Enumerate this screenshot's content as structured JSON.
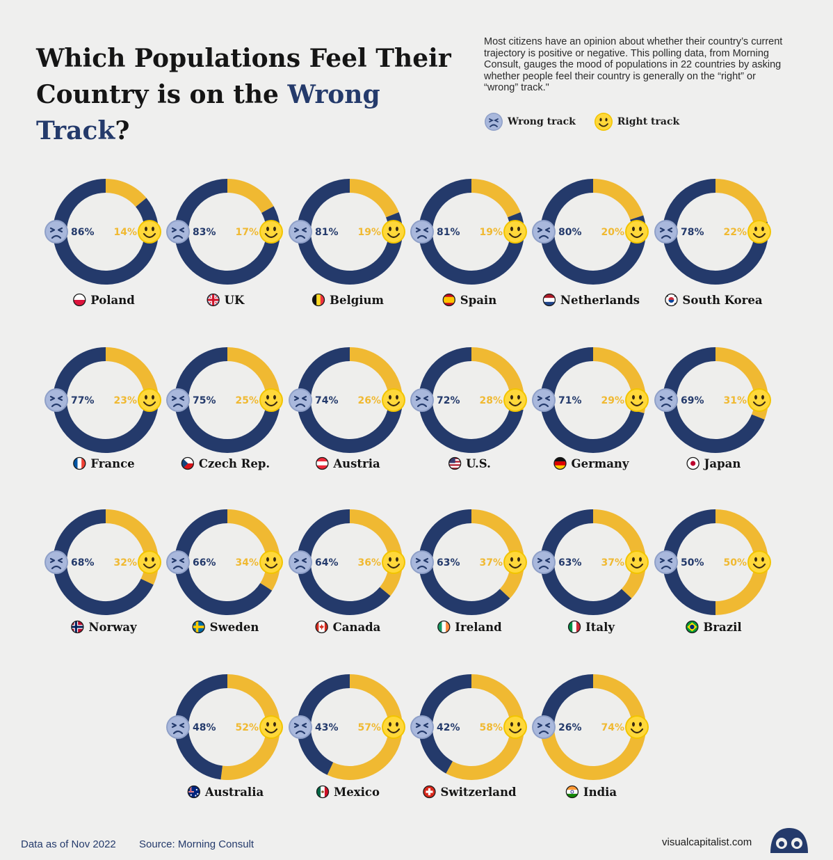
{
  "header": {
    "title_part1": "Which Populations Feel Their Country is on the ",
    "title_highlight": "Wrong Track",
    "title_end": "?",
    "intro": "Most citizens have an opinion about whether their country’s current trajectory is positive or negative. This polling data, from Morning Consult, gauges the mood of populations in 22 countries by asking whether people feel their country is generally on the “right” or “wrong” track.\""
  },
  "legend": {
    "wrong_label": "Wrong track",
    "right_label": "Right track"
  },
  "colors": {
    "wrong": "#243a6b",
    "right": "#f0b932",
    "inner": "#eeeeec",
    "background": "#efefee"
  },
  "icons": {
    "wrong": "sad-face-icon",
    "right": "smiley-face-icon"
  },
  "chart_data": {
    "type": "donut",
    "title": "Which Populations Feel Their Country is on the Wrong Track?",
    "series": [
      {
        "name": "Wrong track",
        "values": [
          86,
          83,
          81,
          81,
          80,
          78,
          77,
          75,
          74,
          72,
          71,
          69,
          68,
          66,
          64,
          63,
          63,
          50,
          48,
          43,
          42,
          26
        ]
      },
      {
        "name": "Right track",
        "values": [
          14,
          17,
          19,
          19,
          20,
          22,
          23,
          25,
          26,
          28,
          29,
          31,
          32,
          34,
          36,
          37,
          37,
          50,
          52,
          57,
          58,
          74
        ]
      }
    ],
    "units": "%",
    "countries": [
      {
        "name": "Poland",
        "wrong": 86,
        "right": 14,
        "flag": "poland-flag-icon"
      },
      {
        "name": "UK",
        "wrong": 83,
        "right": 17,
        "flag": "uk-flag-icon"
      },
      {
        "name": "Belgium",
        "wrong": 81,
        "right": 19,
        "flag": "belgium-flag-icon"
      },
      {
        "name": "Spain",
        "wrong": 81,
        "right": 19,
        "flag": "spain-flag-icon"
      },
      {
        "name": "Netherlands",
        "wrong": 80,
        "right": 20,
        "flag": "netherlands-flag-icon"
      },
      {
        "name": "South Korea",
        "wrong": 78,
        "right": 22,
        "flag": "south-korea-flag-icon"
      },
      {
        "name": "France",
        "wrong": 77,
        "right": 23,
        "flag": "france-flag-icon"
      },
      {
        "name": "Czech Rep.",
        "wrong": 75,
        "right": 25,
        "flag": "czech-flag-icon"
      },
      {
        "name": "Austria",
        "wrong": 74,
        "right": 26,
        "flag": "austria-flag-icon"
      },
      {
        "name": "U.S.",
        "wrong": 72,
        "right": 28,
        "flag": "us-flag-icon"
      },
      {
        "name": "Germany",
        "wrong": 71,
        "right": 29,
        "flag": "germany-flag-icon"
      },
      {
        "name": "Japan",
        "wrong": 69,
        "right": 31,
        "flag": "japan-flag-icon"
      },
      {
        "name": "Norway",
        "wrong": 68,
        "right": 32,
        "flag": "norway-flag-icon"
      },
      {
        "name": "Sweden",
        "wrong": 66,
        "right": 34,
        "flag": "sweden-flag-icon"
      },
      {
        "name": "Canada",
        "wrong": 64,
        "right": 36,
        "flag": "canada-flag-icon"
      },
      {
        "name": "Ireland",
        "wrong": 63,
        "right": 37,
        "flag": "ireland-flag-icon"
      },
      {
        "name": "Italy",
        "wrong": 63,
        "right": 37,
        "flag": "italy-flag-icon"
      },
      {
        "name": "Brazil",
        "wrong": 50,
        "right": 50,
        "flag": "brazil-flag-icon"
      },
      {
        "name": "Australia",
        "wrong": 48,
        "right": 52,
        "flag": "australia-flag-icon"
      },
      {
        "name": "Mexico",
        "wrong": 43,
        "right": 57,
        "flag": "mexico-flag-icon"
      },
      {
        "name": "Switzerland",
        "wrong": 42,
        "right": 58,
        "flag": "switzerland-flag-icon"
      },
      {
        "name": "India",
        "wrong": 26,
        "right": 74,
        "flag": "india-flag-icon"
      }
    ]
  },
  "footer": {
    "date_note": "Data as of Nov 2022",
    "source": "Source: Morning Consult",
    "site": "visualcapitalist.com",
    "logo": "visual-capitalist-logo-icon"
  }
}
